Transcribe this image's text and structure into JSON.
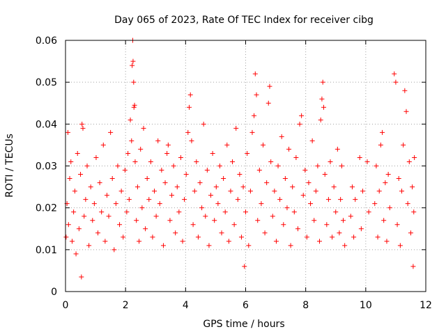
{
  "chart_data": {
    "type": "scatter",
    "title": "Day 065 of 2023, Rate Of TEC Index for receiver cibg",
    "xlabel": "GPS time / hours",
    "ylabel": "ROTI / TECUs",
    "xlim": [
      0,
      12
    ],
    "ylim": [
      0,
      0.06
    ],
    "grid": true,
    "marker": "+",
    "color": "#ff0000",
    "x_ticks": [
      {
        "value": 0,
        "label": "0"
      },
      {
        "value": 2,
        "label": "2"
      },
      {
        "value": 4,
        "label": "4"
      },
      {
        "value": 6,
        "label": "6"
      },
      {
        "value": 8,
        "label": "8"
      },
      {
        "value": 10,
        "label": "10"
      },
      {
        "value": 12,
        "label": "12"
      }
    ],
    "y_ticks": [
      {
        "value": 0,
        "label": "0"
      },
      {
        "value": 0.01,
        "label": "0.01"
      },
      {
        "value": 0.02,
        "label": "0.02"
      },
      {
        "value": 0.03,
        "label": "0.03"
      },
      {
        "value": 0.04,
        "label": "0.04"
      },
      {
        "value": 0.05,
        "label": "0.05"
      },
      {
        "value": 0.06,
        "label": "0.06"
      }
    ],
    "series": [
      {
        "name": "ROTI",
        "points": [
          [
            0.02,
            0.013
          ],
          [
            0.05,
            0.021
          ],
          [
            0.08,
            0.038
          ],
          [
            0.1,
            0.016
          ],
          [
            0.14,
            0.027
          ],
          [
            0.18,
            0.031
          ],
          [
            0.22,
            0.012
          ],
          [
            0.27,
            0.019
          ],
          [
            0.31,
            0.024
          ],
          [
            0.35,
            0.009
          ],
          [
            0.4,
            0.033
          ],
          [
            0.45,
            0.015
          ],
          [
            0.5,
            0.028
          ],
          [
            0.53,
            0.0035
          ],
          [
            0.55,
            0.04
          ],
          [
            0.58,
            0.039
          ],
          [
            0.62,
            0.018
          ],
          [
            0.67,
            0.022
          ],
          [
            0.72,
            0.03
          ],
          [
            0.78,
            0.011
          ],
          [
            0.84,
            0.025
          ],
          [
            0.9,
            0.017
          ],
          [
            0.96,
            0.021
          ],
          [
            1.02,
            0.032
          ],
          [
            1.08,
            0.014
          ],
          [
            1.14,
            0.026
          ],
          [
            1.2,
            0.019
          ],
          [
            1.26,
            0.035
          ],
          [
            1.32,
            0.012
          ],
          [
            1.38,
            0.023
          ],
          [
            1.44,
            0.018
          ],
          [
            1.5,
            0.038
          ],
          [
            1.56,
            0.027
          ],
          [
            1.62,
            0.01
          ],
          [
            1.68,
            0.021
          ],
          [
            1.74,
            0.03
          ],
          [
            1.8,
            0.016
          ],
          [
            1.86,
            0.024
          ],
          [
            1.92,
            0.013
          ],
          [
            1.98,
            0.029
          ],
          [
            2.04,
            0.019
          ],
          [
            2.08,
            0.033
          ],
          [
            2.12,
            0.022
          ],
          [
            2.16,
            0.041
          ],
          [
            2.2,
            0.036
          ],
          [
            2.22,
            0.054
          ],
          [
            2.24,
            0.06
          ],
          [
            2.25,
            0.055
          ],
          [
            2.27,
            0.05
          ],
          [
            2.28,
            0.044
          ],
          [
            2.3,
            0.0445
          ],
          [
            2.32,
            0.031
          ],
          [
            2.36,
            0.017
          ],
          [
            2.4,
            0.025
          ],
          [
            2.45,
            0.012
          ],
          [
            2.5,
            0.034
          ],
          [
            2.55,
            0.02
          ],
          [
            2.6,
            0.039
          ],
          [
            2.66,
            0.015
          ],
          [
            2.72,
            0.027
          ],
          [
            2.78,
            0.022
          ],
          [
            2.84,
            0.031
          ],
          [
            2.9,
            0.013
          ],
          [
            2.96,
            0.024
          ],
          [
            3.02,
            0.018
          ],
          [
            3.08,
            0.036
          ],
          [
            3.14,
            0.021
          ],
          [
            3.2,
            0.029
          ],
          [
            3.26,
            0.011
          ],
          [
            3.32,
            0.026
          ],
          [
            3.38,
            0.033
          ],
          [
            3.42,
            0.035
          ],
          [
            3.48,
            0.017
          ],
          [
            3.54,
            0.023
          ],
          [
            3.6,
            0.03
          ],
          [
            3.66,
            0.014
          ],
          [
            3.72,
            0.025
          ],
          [
            3.78,
            0.019
          ],
          [
            3.84,
            0.032
          ],
          [
            3.9,
            0.012
          ],
          [
            3.96,
            0.022
          ],
          [
            4.02,
            0.028
          ],
          [
            4.08,
            0.038
          ],
          [
            4.12,
            0.044
          ],
          [
            4.16,
            0.047
          ],
          [
            4.2,
            0.036
          ],
          [
            4.25,
            0.016
          ],
          [
            4.3,
            0.024
          ],
          [
            4.36,
            0.031
          ],
          [
            4.42,
            0.013
          ],
          [
            4.48,
            0.026
          ],
          [
            4.54,
            0.02
          ],
          [
            4.6,
            0.04
          ],
          [
            4.66,
            0.018
          ],
          [
            4.72,
            0.029
          ],
          [
            4.78,
            0.011
          ],
          [
            4.84,
            0.023
          ],
          [
            4.9,
            0.033
          ],
          [
            4.96,
            0.017
          ],
          [
            5.02,
            0.025
          ],
          [
            5.08,
            0.021
          ],
          [
            5.14,
            0.03
          ],
          [
            5.2,
            0.014
          ],
          [
            5.26,
            0.027
          ],
          [
            5.32,
            0.019
          ],
          [
            5.38,
            0.035
          ],
          [
            5.44,
            0.012
          ],
          [
            5.5,
            0.024
          ],
          [
            5.56,
            0.031
          ],
          [
            5.62,
            0.016
          ],
          [
            5.68,
            0.039
          ],
          [
            5.74,
            0.022
          ],
          [
            5.8,
            0.028
          ],
          [
            5.86,
            0.013
          ],
          [
            5.92,
            0.025
          ],
          [
            5.96,
            0.006
          ],
          [
            6.0,
            0.019
          ],
          [
            6.05,
            0.033
          ],
          [
            6.1,
            0.011
          ],
          [
            6.16,
            0.024
          ],
          [
            6.22,
            0.038
          ],
          [
            6.28,
            0.042
          ],
          [
            6.32,
            0.052
          ],
          [
            6.36,
            0.047
          ],
          [
            6.4,
            0.017
          ],
          [
            6.46,
            0.029
          ],
          [
            6.52,
            0.021
          ],
          [
            6.58,
            0.035
          ],
          [
            6.64,
            0.014
          ],
          [
            6.7,
            0.026
          ],
          [
            6.76,
            0.045
          ],
          [
            6.8,
            0.049
          ],
          [
            6.84,
            0.031
          ],
          [
            6.9,
            0.018
          ],
          [
            6.96,
            0.024
          ],
          [
            7.02,
            0.012
          ],
          [
            7.08,
            0.03
          ],
          [
            7.14,
            0.022
          ],
          [
            7.2,
            0.037
          ],
          [
            7.26,
            0.016
          ],
          [
            7.32,
            0.027
          ],
          [
            7.38,
            0.02
          ],
          [
            7.44,
            0.034
          ],
          [
            7.5,
            0.011
          ],
          [
            7.56,
            0.025
          ],
          [
            7.62,
            0.019
          ],
          [
            7.68,
            0.032
          ],
          [
            7.74,
            0.015
          ],
          [
            7.8,
            0.04
          ],
          [
            7.86,
            0.042
          ],
          [
            7.92,
            0.023
          ],
          [
            7.98,
            0.029
          ],
          [
            8.04,
            0.013
          ],
          [
            8.1,
            0.026
          ],
          [
            8.16,
            0.021
          ],
          [
            8.22,
            0.036
          ],
          [
            8.28,
            0.017
          ],
          [
            8.34,
            0.024
          ],
          [
            8.4,
            0.03
          ],
          [
            8.46,
            0.012
          ],
          [
            8.5,
            0.041
          ],
          [
            8.54,
            0.046
          ],
          [
            8.57,
            0.05
          ],
          [
            8.6,
            0.044
          ],
          [
            8.64,
            0.028
          ],
          [
            8.7,
            0.016
          ],
          [
            8.76,
            0.022
          ],
          [
            8.82,
            0.031
          ],
          [
            8.88,
            0.013
          ],
          [
            8.94,
            0.025
          ],
          [
            9.0,
            0.019
          ],
          [
            9.06,
            0.034
          ],
          [
            9.12,
            0.014
          ],
          [
            9.16,
            0.022
          ],
          [
            9.2,
            0.03
          ],
          [
            9.25,
            0.017
          ],
          [
            9.3,
            0.011
          ],
          [
            9.5,
            0.018
          ],
          [
            9.55,
            0.025
          ],
          [
            9.6,
            0.013
          ],
          [
            9.65,
            0.022
          ],
          [
            9.8,
            0.032
          ],
          [
            9.85,
            0.015
          ],
          [
            9.9,
            0.024
          ],
          [
            10.05,
            0.031
          ],
          [
            10.1,
            0.019
          ],
          [
            10.3,
            0.021
          ],
          [
            10.35,
            0.03
          ],
          [
            10.4,
            0.013
          ],
          [
            10.45,
            0.024
          ],
          [
            10.5,
            0.035
          ],
          [
            10.55,
            0.038
          ],
          [
            10.6,
            0.017
          ],
          [
            10.65,
            0.026
          ],
          [
            10.7,
            0.012
          ],
          [
            10.75,
            0.028
          ],
          [
            10.8,
            0.02
          ],
          [
            10.95,
            0.052
          ],
          [
            11.0,
            0.05
          ],
          [
            11.05,
            0.016
          ],
          [
            11.1,
            0.027
          ],
          [
            11.15,
            0.011
          ],
          [
            11.2,
            0.024
          ],
          [
            11.25,
            0.035
          ],
          [
            11.3,
            0.048
          ],
          [
            11.35,
            0.043
          ],
          [
            11.4,
            0.021
          ],
          [
            11.45,
            0.031
          ],
          [
            11.5,
            0.014
          ],
          [
            11.55,
            0.025
          ],
          [
            11.58,
            0.006
          ],
          [
            11.6,
            0.019
          ],
          [
            11.62,
            0.032
          ]
        ]
      }
    ]
  }
}
